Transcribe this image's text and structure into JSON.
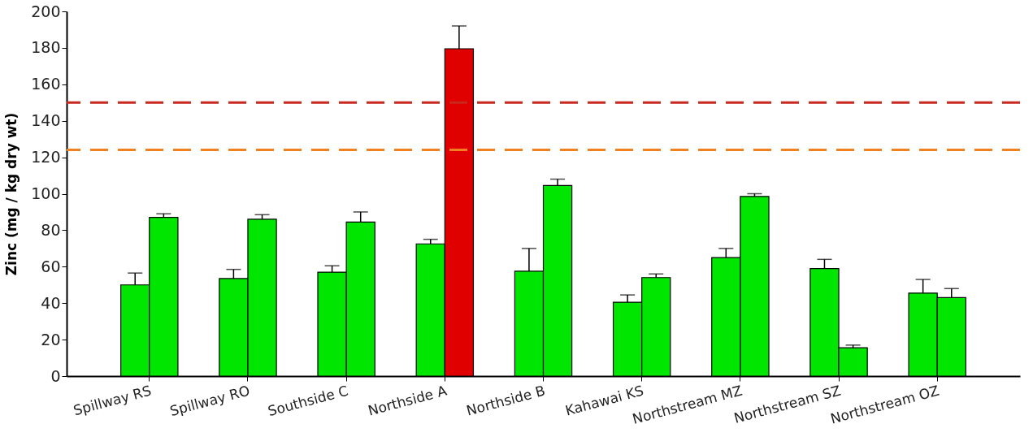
{
  "chart_data": {
    "type": "bar",
    "ylabel": "Zinc (mg / kg dry wt)",
    "categories": [
      "Spillway RS",
      "Spillway RO",
      "Southside C",
      "Northside A",
      "Northside B",
      "Kahawai KS",
      "Northstream MZ",
      "Northstream SZ",
      "Northstream OZ"
    ],
    "series": [
      {
        "color": "#00e600",
        "values": [
          50,
          53.5,
          57,
          72.5,
          57.5,
          40.5,
          65,
          59,
          45.5
        ],
        "errors": [
          [
            50,
            56.5
          ],
          [
            53.5,
            58.5
          ],
          [
            57,
            60.5
          ],
          [
            72.5,
            75
          ],
          [
            57.5,
            70
          ],
          [
            40.5,
            44.5
          ],
          [
            65,
            70
          ],
          [
            59,
            64
          ],
          [
            45.5,
            53
          ]
        ]
      },
      {
        "colors": [
          "#00e600",
          "#00e600",
          "#00e600",
          "#e00000",
          "#00e600",
          "#00e600",
          "#00e600",
          "#00e600",
          "#00e600"
        ],
        "values": [
          87,
          86,
          84.5,
          179.5,
          104.5,
          54,
          98.5,
          15.5,
          43
        ],
        "errors": [
          [
            87,
            89
          ],
          [
            86,
            88.5
          ],
          [
            84.5,
            90
          ],
          [
            179.5,
            192
          ],
          [
            104.5,
            108
          ],
          [
            54,
            56
          ],
          [
            98.5,
            100
          ],
          [
            15.5,
            17
          ],
          [
            43,
            48
          ]
        ]
      }
    ],
    "ylim": [
      0,
      200
    ],
    "yticks": [
      0,
      20,
      40,
      60,
      80,
      100,
      120,
      140,
      160,
      180,
      200
    ],
    "ref_lines": [
      {
        "axis": "y",
        "value": 150,
        "color": "#c8281e",
        "line_style": "dashed"
      },
      {
        "axis": "y",
        "value": 124,
        "color": "#f08020",
        "line_style": "dashed"
      }
    ],
    "grid": false
  }
}
